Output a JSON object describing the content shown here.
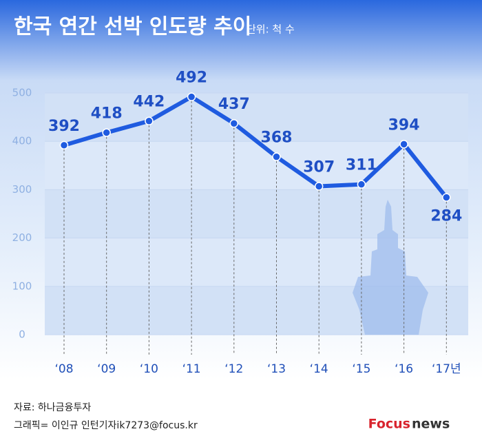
{
  "chart_data": {
    "type": "line",
    "title": "한국 연간 선박 인도량 추이",
    "subtitle": "단위: 척 수",
    "categories": [
      "‘08",
      "‘09",
      "‘10",
      "‘11",
      "‘12",
      "‘13",
      "‘14",
      "‘15",
      "‘16",
      "‘17년"
    ],
    "values": [
      392,
      418,
      442,
      492,
      437,
      368,
      307,
      311,
      394,
      284
    ],
    "color": "#1f5be0",
    "ylim": [
      0,
      500
    ],
    "yticks": [
      0,
      100,
      200,
      300,
      400,
      500
    ],
    "grid": true
  },
  "footer": {
    "source": "자료: 하나금융투자",
    "credit": "그래픽= 이인규 인턴기자ik7273@focus.kr",
    "logo": {
      "brand": "Focus",
      "suffix": "news"
    }
  }
}
